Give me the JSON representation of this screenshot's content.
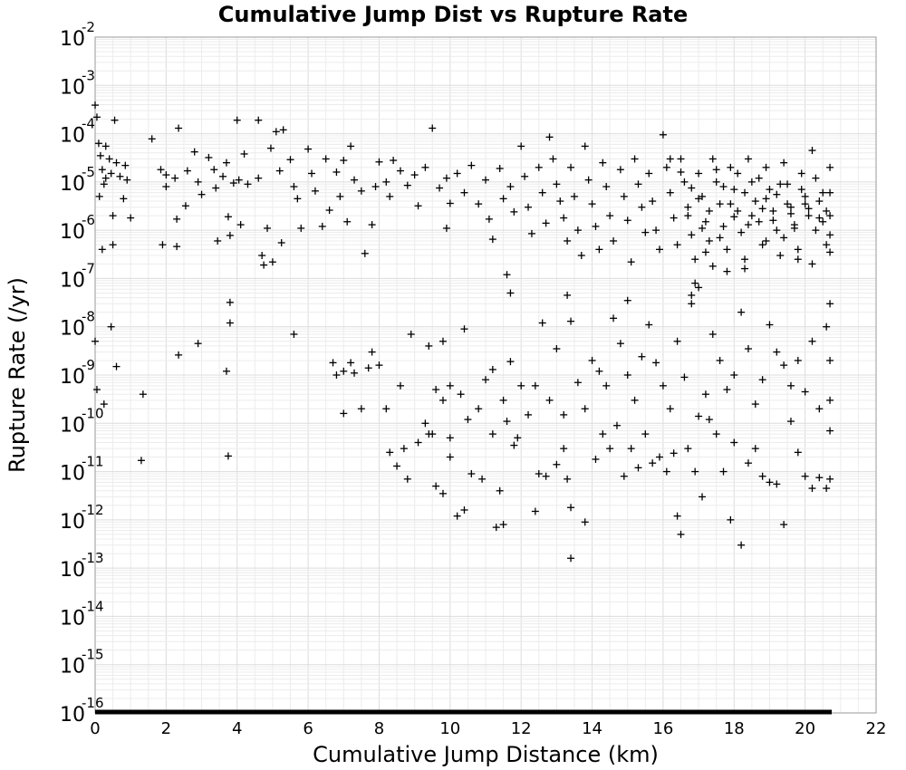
{
  "chart_data": {
    "type": "scatter",
    "title": "Cumulative Jump Dist vs Rupture Rate",
    "xlabel": "Cumulative Jump Distance (km)",
    "ylabel": "Rupture Rate (/yr)",
    "xlim": [
      0,
      22
    ],
    "ylim": [
      1e-16,
      0.01
    ],
    "y_scale": "log",
    "grid": true,
    "marker": "plus",
    "marker_color": "#000000",
    "x_ticks": [
      "0",
      "2",
      "4",
      "6",
      "8",
      "10",
      "12",
      "14",
      "16",
      "18",
      "20",
      "22"
    ],
    "y_ticks": [
      {
        "base": "10",
        "exp": "-2"
      },
      {
        "base": "10",
        "exp": "-3"
      },
      {
        "base": "10",
        "exp": "-4"
      },
      {
        "base": "10",
        "exp": "-5"
      },
      {
        "base": "10",
        "exp": "-6"
      },
      {
        "base": "10",
        "exp": "-7"
      },
      {
        "base": "10",
        "exp": "-8"
      },
      {
        "base": "10",
        "exp": "-9"
      },
      {
        "base": "10",
        "exp": "-10"
      },
      {
        "base": "10",
        "exp": "-11"
      },
      {
        "base": "10",
        "exp": "-12"
      },
      {
        "base": "10",
        "exp": "-13"
      },
      {
        "base": "10",
        "exp": "-14"
      },
      {
        "base": "10",
        "exp": "-15"
      },
      {
        "base": "10",
        "exp": "-16"
      }
    ],
    "points": [
      [
        0.0,
        0.00039
      ],
      [
        0.05,
        0.00022
      ],
      [
        0.1,
        6.3e-05
      ],
      [
        0.15,
        3.5e-05
      ],
      [
        0.2,
        1.8e-05
      ],
      [
        0.25,
        9e-06
      ],
      [
        0.3,
        1.2e-05
      ],
      [
        0.3,
        5.5e-05
      ],
      [
        0.4,
        3e-05
      ],
      [
        0.45,
        1.5e-05
      ],
      [
        0.5,
        5e-07
      ],
      [
        0.5,
        2e-06
      ],
      [
        0.55,
        0.00019
      ],
      [
        0.6,
        2.5e-05
      ],
      [
        0.7,
        1.3e-05
      ],
      [
        0.8,
        4.5e-06
      ],
      [
        0.85,
        2.2e-05
      ],
      [
        0.9,
        1.1e-05
      ],
      [
        1.0,
        1.8e-06
      ],
      [
        0.12,
        5e-06
      ],
      [
        0.2,
        4e-07
      ],
      [
        0.0,
        5e-09
      ],
      [
        0.05,
        5e-10
      ],
      [
        0.25,
        2.5e-10
      ],
      [
        0.45,
        1e-08
      ],
      [
        0.6,
        1.5e-09
      ],
      [
        1.35,
        4e-10
      ],
      [
        1.3,
        1.7e-11
      ],
      [
        3.75,
        2.1e-11
      ],
      [
        1.6,
        7.8e-05
      ],
      [
        1.85,
        1.8e-05
      ],
      [
        2.0,
        1.4e-05
      ],
      [
        2.0,
        8e-06
      ],
      [
        2.25,
        1.2e-05
      ],
      [
        2.3,
        1.7e-06
      ],
      [
        2.3,
        4.6e-07
      ],
      [
        1.9,
        5e-07
      ],
      [
        2.35,
        0.00013
      ],
      [
        2.55,
        3.2e-06
      ],
      [
        2.6,
        1.7e-05
      ],
      [
        2.8,
        4.2e-05
      ],
      [
        2.9,
        1e-05
      ],
      [
        3.0,
        5.5e-06
      ],
      [
        3.2,
        3.2e-05
      ],
      [
        3.35,
        1.8e-05
      ],
      [
        3.4,
        7.5e-06
      ],
      [
        3.45,
        6e-07
      ],
      [
        3.6,
        1.3e-05
      ],
      [
        3.7,
        2.5e-05
      ],
      [
        3.75,
        1.9e-06
      ],
      [
        3.8,
        7.8e-07
      ],
      [
        3.9,
        9.5e-06
      ],
      [
        4.0,
        0.00019
      ],
      [
        4.05,
        1.1e-05
      ],
      [
        4.1,
        1.3e-06
      ],
      [
        4.2,
        3.8e-05
      ],
      [
        4.3,
        9e-06
      ],
      [
        4.6,
        0.00019
      ],
      [
        4.6,
        1.2e-05
      ],
      [
        4.7,
        3e-07
      ],
      [
        4.75,
        1.9e-07
      ],
      [
        4.85,
        1.1e-06
      ],
      [
        4.95,
        5e-05
      ],
      [
        5.0,
        2.2e-07
      ],
      [
        5.1,
        0.00011
      ],
      [
        5.2,
        1.7e-05
      ],
      [
        5.25,
        5.5e-07
      ],
      [
        5.3,
        0.00012
      ],
      [
        5.5,
        2.9e-05
      ],
      [
        5.6,
        8e-06
      ],
      [
        5.7,
        4.5e-06
      ],
      [
        5.8,
        1.1e-06
      ],
      [
        6.0,
        4.8e-05
      ],
      [
        6.1,
        1.5e-05
      ],
      [
        6.2,
        6.5e-06
      ],
      [
        6.4,
        1.2e-06
      ],
      [
        6.5,
        3e-05
      ],
      [
        6.6,
        2.6e-06
      ],
      [
        6.8,
        1.6e-05
      ],
      [
        6.9,
        5e-06
      ],
      [
        7.0,
        2.8e-05
      ],
      [
        7.1,
        1.5e-06
      ],
      [
        7.2,
        5.5e-05
      ],
      [
        7.3,
        1.1e-05
      ],
      [
        7.5,
        6.5e-06
      ],
      [
        7.6,
        3.3e-07
      ],
      [
        7.8,
        1.3e-06
      ],
      [
        7.9,
        8e-06
      ],
      [
        8.0,
        2.6e-05
      ],
      [
        8.2,
        1e-05
      ],
      [
        8.3,
        5e-06
      ],
      [
        8.4,
        2.8e-05
      ],
      [
        8.6,
        1.7e-05
      ],
      [
        8.8,
        8.5e-06
      ],
      [
        9.0,
        1.4e-05
      ],
      [
        9.1,
        3.2e-06
      ],
      [
        9.3,
        2e-05
      ],
      [
        9.5,
        0.00013
      ],
      [
        9.7,
        7.5e-06
      ],
      [
        9.9,
        1.2e-05
      ],
      [
        9.9,
        1.1e-06
      ],
      [
        10.0,
        3.6e-06
      ],
      [
        3.8,
        3.2e-08
      ],
      [
        3.8,
        1.2e-08
      ],
      [
        2.9,
        4.5e-09
      ],
      [
        2.35,
        2.6e-09
      ],
      [
        3.7,
        1.2e-09
      ],
      [
        5.6,
        7e-09
      ],
      [
        6.7,
        1.8e-09
      ],
      [
        6.8,
        1e-09
      ],
      [
        7.0,
        1.6e-10
      ],
      [
        7.0,
        1.2e-09
      ],
      [
        7.2,
        1.8e-09
      ],
      [
        7.3,
        1.1e-09
      ],
      [
        7.5,
        2e-10
      ],
      [
        7.7,
        1.4e-09
      ],
      [
        7.8,
        3e-09
      ],
      [
        8.0,
        1.6e-09
      ],
      [
        8.2,
        2e-10
      ],
      [
        8.6,
        6e-10
      ],
      [
        8.9,
        7e-09
      ],
      [
        9.4,
        4e-09
      ],
      [
        9.8,
        5e-09
      ],
      [
        10.0,
        6e-10
      ],
      [
        10.4,
        9e-09
      ],
      [
        8.3,
        2.5e-11
      ],
      [
        8.5,
        1.3e-11
      ],
      [
        8.7,
        3e-11
      ],
      [
        8.8,
        7e-12
      ],
      [
        9.1,
        4e-11
      ],
      [
        9.3,
        1e-10
      ],
      [
        9.5,
        6e-11
      ],
      [
        9.6,
        5e-12
      ],
      [
        9.8,
        3.5e-12
      ],
      [
        10.0,
        2e-11
      ],
      [
        10.2,
        1.2e-12
      ],
      [
        10.4,
        1.6e-12
      ],
      [
        10.6,
        9e-12
      ],
      [
        10.9,
        7e-12
      ],
      [
        11.2,
        6e-11
      ],
      [
        11.4,
        4e-12
      ],
      [
        11.6,
        1.1e-10
      ],
      [
        11.8,
        3.5e-11
      ],
      [
        12.0,
        6e-10
      ],
      [
        11.3,
        7e-13
      ],
      [
        11.5,
        8e-13
      ],
      [
        12.4,
        1.5e-12
      ],
      [
        12.5,
        9e-12
      ],
      [
        12.7,
        8e-12
      ],
      [
        13.0,
        1.4e-11
      ],
      [
        13.2,
        3e-11
      ],
      [
        13.3,
        7e-12
      ],
      [
        13.4,
        1.8e-12
      ],
      [
        13.4,
        1.6e-13
      ],
      [
        13.8,
        9e-13
      ],
      [
        14.1,
        1.8e-11
      ],
      [
        14.3,
        6e-11
      ],
      [
        14.5,
        3e-11
      ],
      [
        14.7,
        9e-11
      ],
      [
        14.9,
        8e-12
      ],
      [
        15.1,
        3e-11
      ],
      [
        15.3,
        1.2e-11
      ],
      [
        15.5,
        6e-11
      ],
      [
        15.7,
        1.5e-11
      ],
      [
        15.9,
        2e-11
      ],
      [
        16.1,
        1e-11
      ],
      [
        16.3,
        2.4e-11
      ],
      [
        16.4,
        1.2e-12
      ],
      [
        16.5,
        5e-13
      ],
      [
        16.7,
        3e-11
      ],
      [
        16.9,
        1e-11
      ],
      [
        17.1,
        3e-12
      ],
      [
        17.3,
        1.2e-10
      ],
      [
        17.5,
        6e-11
      ],
      [
        17.7,
        1e-11
      ],
      [
        17.9,
        1e-12
      ],
      [
        18.0,
        4e-11
      ],
      [
        18.2,
        3e-13
      ],
      [
        18.4,
        1.5e-11
      ],
      [
        18.6,
        3e-11
      ],
      [
        18.8,
        8e-12
      ],
      [
        19.0,
        6e-12
      ],
      [
        19.2,
        5.5e-12
      ],
      [
        19.4,
        8e-13
      ],
      [
        19.6,
        1.1e-10
      ],
      [
        19.8,
        2.5e-11
      ],
      [
        20.0,
        8e-12
      ],
      [
        20.2,
        4.5e-12
      ],
      [
        20.4,
        7.5e-12
      ],
      [
        20.6,
        4.5e-12
      ],
      [
        20.7,
        7e-12
      ],
      [
        9.4,
        6e-11
      ],
      [
        9.6,
        5e-10
      ],
      [
        9.8,
        3e-10
      ],
      [
        10.0,
        5e-11
      ],
      [
        10.3,
        4e-10
      ],
      [
        10.5,
        1.2e-10
      ],
      [
        10.8,
        2e-10
      ],
      [
        11.0,
        8e-10
      ],
      [
        11.2,
        1.3e-09
      ],
      [
        11.5,
        3e-10
      ],
      [
        11.7,
        1.9e-09
      ],
      [
        11.9,
        5e-11
      ],
      [
        12.2,
        1.5e-10
      ],
      [
        12.4,
        6e-10
      ],
      [
        12.6,
        1.2e-08
      ],
      [
        12.8,
        3e-10
      ],
      [
        13.0,
        3.5e-09
      ],
      [
        13.2,
        1.5e-10
      ],
      [
        13.4,
        1.3e-08
      ],
      [
        13.6,
        7e-10
      ],
      [
        13.8,
        2e-10
      ],
      [
        14.0,
        2e-09
      ],
      [
        14.2,
        1.2e-09
      ],
      [
        14.4,
        6e-10
      ],
      [
        14.6,
        1.5e-08
      ],
      [
        14.8,
        4.5e-09
      ],
      [
        15.0,
        1e-09
      ],
      [
        15.2,
        3e-10
      ],
      [
        15.4,
        2.4e-09
      ],
      [
        15.6,
        1.1e-08
      ],
      [
        15.8,
        1.8e-09
      ],
      [
        16.0,
        6e-10
      ],
      [
        16.2,
        2e-10
      ],
      [
        16.4,
        5e-09
      ],
      [
        16.6,
        9e-10
      ],
      [
        16.8,
        3e-08
      ],
      [
        17.0,
        1.4e-10
      ],
      [
        17.2,
        4e-10
      ],
      [
        17.4,
        7e-09
      ],
      [
        17.6,
        2e-09
      ],
      [
        17.8,
        5e-10
      ],
      [
        18.0,
        1e-09
      ],
      [
        18.2,
        2e-08
      ],
      [
        18.4,
        3.5e-09
      ],
      [
        18.6,
        2.5e-10
      ],
      [
        18.8,
        8e-10
      ],
      [
        19.0,
        1.1e-08
      ],
      [
        19.2,
        3e-09
      ],
      [
        19.4,
        1.6e-09
      ],
      [
        19.6,
        6e-10
      ],
      [
        19.8,
        2e-09
      ],
      [
        20.0,
        4.5e-10
      ],
      [
        20.2,
        5e-09
      ],
      [
        20.4,
        2e-10
      ],
      [
        20.6,
        1e-08
      ],
      [
        20.7,
        3e-08
      ],
      [
        20.7,
        2e-09
      ],
      [
        20.7,
        3e-10
      ],
      [
        20.7,
        7e-11
      ],
      [
        10.2,
        1.5e-05
      ],
      [
        10.4,
        6e-06
      ],
      [
        10.6,
        2.2e-05
      ],
      [
        10.8,
        3.5e-06
      ],
      [
        11.0,
        1.1e-05
      ],
      [
        11.1,
        1.7e-06
      ],
      [
        11.2,
        6.5e-07
      ],
      [
        11.4,
        1.9e-05
      ],
      [
        11.5,
        4.5e-06
      ],
      [
        11.6,
        1.2e-07
      ],
      [
        11.7,
        8e-06
      ],
      [
        11.8,
        2.4e-06
      ],
      [
        11.7,
        5e-08
      ],
      [
        12.0,
        5.5e-05
      ],
      [
        12.1,
        1.3e-05
      ],
      [
        12.2,
        3e-06
      ],
      [
        12.3,
        8.5e-07
      ],
      [
        12.5,
        2e-05
      ],
      [
        12.6,
        6e-06
      ],
      [
        12.7,
        1.4e-06
      ],
      [
        12.8,
        8.5e-05
      ],
      [
        12.9,
        3e-05
      ],
      [
        13.0,
        9e-06
      ],
      [
        13.1,
        4e-06
      ],
      [
        13.2,
        1.8e-06
      ],
      [
        13.3,
        6e-07
      ],
      [
        13.3,
        4.5e-08
      ],
      [
        13.4,
        2e-05
      ],
      [
        13.5,
        5e-06
      ],
      [
        13.6,
        1e-06
      ],
      [
        13.7,
        3e-07
      ],
      [
        13.8,
        5.5e-05
      ],
      [
        13.9,
        1.1e-05
      ],
      [
        14.0,
        3.5e-06
      ],
      [
        14.1,
        1.2e-06
      ],
      [
        14.2,
        4e-07
      ],
      [
        14.3,
        2.5e-05
      ],
      [
        14.4,
        8e-06
      ],
      [
        14.5,
        2e-06
      ],
      [
        14.6,
        6e-07
      ],
      [
        14.8,
        1.8e-05
      ],
      [
        14.9,
        5e-06
      ],
      [
        15.0,
        1.6e-06
      ],
      [
        15.0,
        3.5e-08
      ],
      [
        15.1,
        2.2e-07
      ],
      [
        15.2,
        3e-05
      ],
      [
        15.3,
        9e-06
      ],
      [
        15.4,
        3e-06
      ],
      [
        15.5,
        9e-07
      ],
      [
        15.6,
        1.5e-05
      ],
      [
        15.7,
        4e-06
      ],
      [
        15.8,
        1e-06
      ],
      [
        15.9,
        4e-07
      ],
      [
        16.0,
        9.5e-05
      ],
      [
        16.1,
        2e-05
      ],
      [
        16.2,
        6e-06
      ],
      [
        16.3,
        1.8e-06
      ],
      [
        16.4,
        5e-07
      ],
      [
        16.5,
        3e-05
      ],
      [
        16.6,
        1e-05
      ],
      [
        16.7,
        3e-06
      ],
      [
        16.8,
        8e-07
      ],
      [
        16.9,
        2.5e-07
      ],
      [
        17.0,
        1.5e-05
      ],
      [
        17.1,
        5e-06
      ],
      [
        17.2,
        1.5e-06
      ],
      [
        17.3,
        6e-07
      ],
      [
        17.4,
        3e-05
      ],
      [
        17.5,
        1e-05
      ],
      [
        17.6,
        3.5e-06
      ],
      [
        17.7,
        1.2e-06
      ],
      [
        17.8,
        4e-07
      ],
      [
        17.9,
        2e-05
      ],
      [
        18.0,
        7e-06
      ],
      [
        18.1,
        2.5e-06
      ],
      [
        18.2,
        9e-07
      ],
      [
        18.3,
        2.5e-07
      ],
      [
        18.4,
        3e-05
      ],
      [
        18.5,
        1e-05
      ],
      [
        18.6,
        4e-06
      ],
      [
        18.7,
        1.5e-06
      ],
      [
        18.8,
        5e-07
      ],
      [
        18.9,
        2e-05
      ],
      [
        19.0,
        7e-06
      ],
      [
        19.1,
        2.5e-06
      ],
      [
        19.2,
        1e-06
      ],
      [
        19.3,
        3e-07
      ],
      [
        19.4,
        2.5e-05
      ],
      [
        19.5,
        9e-06
      ],
      [
        19.6,
        3e-06
      ],
      [
        19.7,
        1.1e-06
      ],
      [
        19.8,
        4e-07
      ],
      [
        19.9,
        1.5e-05
      ],
      [
        20.0,
        5e-06
      ],
      [
        20.1,
        2e-06
      ],
      [
        20.2,
        4.5e-05
      ],
      [
        20.3,
        1.2e-05
      ],
      [
        20.4,
        4e-06
      ],
      [
        20.5,
        1.5e-06
      ],
      [
        20.6,
        5e-07
      ],
      [
        20.7,
        2e-05
      ],
      [
        20.7,
        6e-06
      ],
      [
        20.7,
        2e-06
      ],
      [
        20.7,
        8e-07
      ],
      [
        20.7,
        3.5e-07
      ],
      [
        16.2,
        3e-05
      ],
      [
        16.5,
        1.6e-05
      ],
      [
        16.8,
        7.5e-06
      ],
      [
        17.0,
        4.5e-06
      ],
      [
        17.3,
        2.5e-06
      ],
      [
        17.5,
        1.8e-05
      ],
      [
        17.7,
        8e-06
      ],
      [
        17.9,
        3.5e-06
      ],
      [
        18.1,
        1.5e-05
      ],
      [
        18.3,
        6e-06
      ],
      [
        18.5,
        2e-06
      ],
      [
        18.7,
        1.2e-05
      ],
      [
        18.9,
        4.5e-06
      ],
      [
        19.1,
        1.6e-06
      ],
      [
        19.3,
        9e-06
      ],
      [
        19.5,
        3.5e-06
      ],
      [
        19.7,
        1.3e-06
      ],
      [
        19.9,
        7e-06
      ],
      [
        20.1,
        2.8e-06
      ],
      [
        20.3,
        1e-06
      ],
      [
        20.5,
        6e-06
      ],
      [
        20.6,
        2.5e-06
      ],
      [
        16.7,
        2e-06
      ],
      [
        17.1,
        1.1e-06
      ],
      [
        17.6,
        7e-07
      ],
      [
        18.0,
        1.9e-06
      ],
      [
        18.4,
        1.3e-06
      ],
      [
        18.8,
        2.8e-06
      ],
      [
        19.2,
        5.5e-06
      ],
      [
        19.6,
        2.2e-06
      ],
      [
        20.0,
        3.5e-06
      ],
      [
        20.4,
        1.8e-06
      ],
      [
        17.2,
        3.5e-07
      ],
      [
        17.4,
        1.8e-07
      ],
      [
        16.9,
        8e-08
      ],
      [
        16.8,
        4.5e-08
      ],
      [
        17.0,
        6.5e-08
      ],
      [
        17.8,
        1.4e-07
      ],
      [
        18.3,
        1.6e-07
      ],
      [
        18.9,
        6e-07
      ],
      [
        19.4,
        7e-07
      ],
      [
        19.8,
        2.5e-07
      ],
      [
        20.2,
        2e-07
      ]
    ]
  }
}
